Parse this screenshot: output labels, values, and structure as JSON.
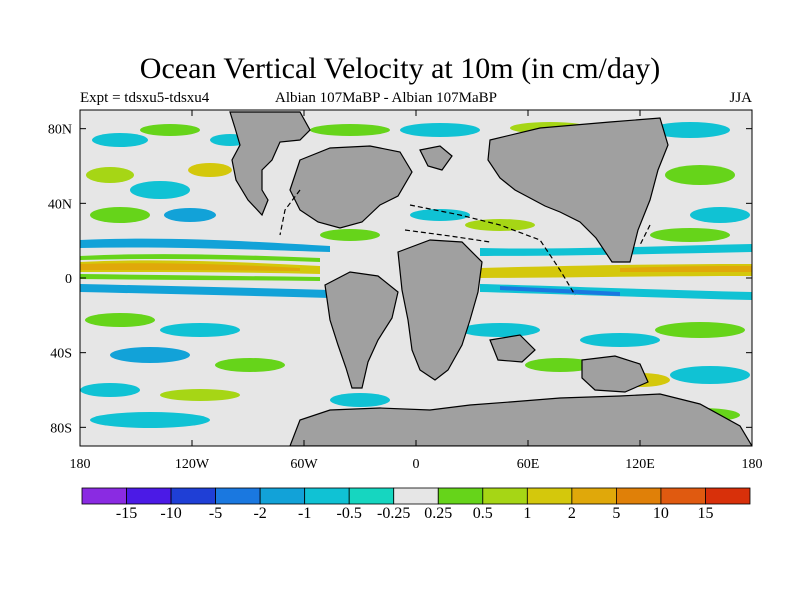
{
  "title": "Ocean Vertical Velocity at 10m (in cm/day)",
  "subtitle_left": "Expt = tdsxu5-tdsxu4",
  "subtitle_center": "Albian   107MaBP - Albian   107MaBP",
  "subtitle_right": "JJA",
  "lat_labels": [
    "80N",
    "40N",
    "0",
    "40S",
    "80S"
  ],
  "lon_labels": [
    "180",
    "120W",
    "60W",
    "0",
    "60E",
    "120E",
    "180"
  ],
  "colorbar": {
    "labels": [
      "-15",
      "-10",
      "-5",
      "-2",
      "-1",
      "-0.5",
      "-0.25",
      "0.25",
      "0.5",
      "1",
      "2",
      "5",
      "10",
      "15"
    ],
    "colors": [
      "#8a2be2",
      "#4b1ae6",
      "#1f3fd6",
      "#1a78e0",
      "#12a2d8",
      "#10c2d4",
      "#16d6c0",
      "#e6e6e6",
      "#66d41a",
      "#a6d615",
      "#d4c80c",
      "#e0a80a",
      "#e08008",
      "#e05a10",
      "#d8300a"
    ]
  },
  "colors": {
    "land": "#a0a0a0",
    "ocean_neutral": "#e6e6e6"
  }
}
